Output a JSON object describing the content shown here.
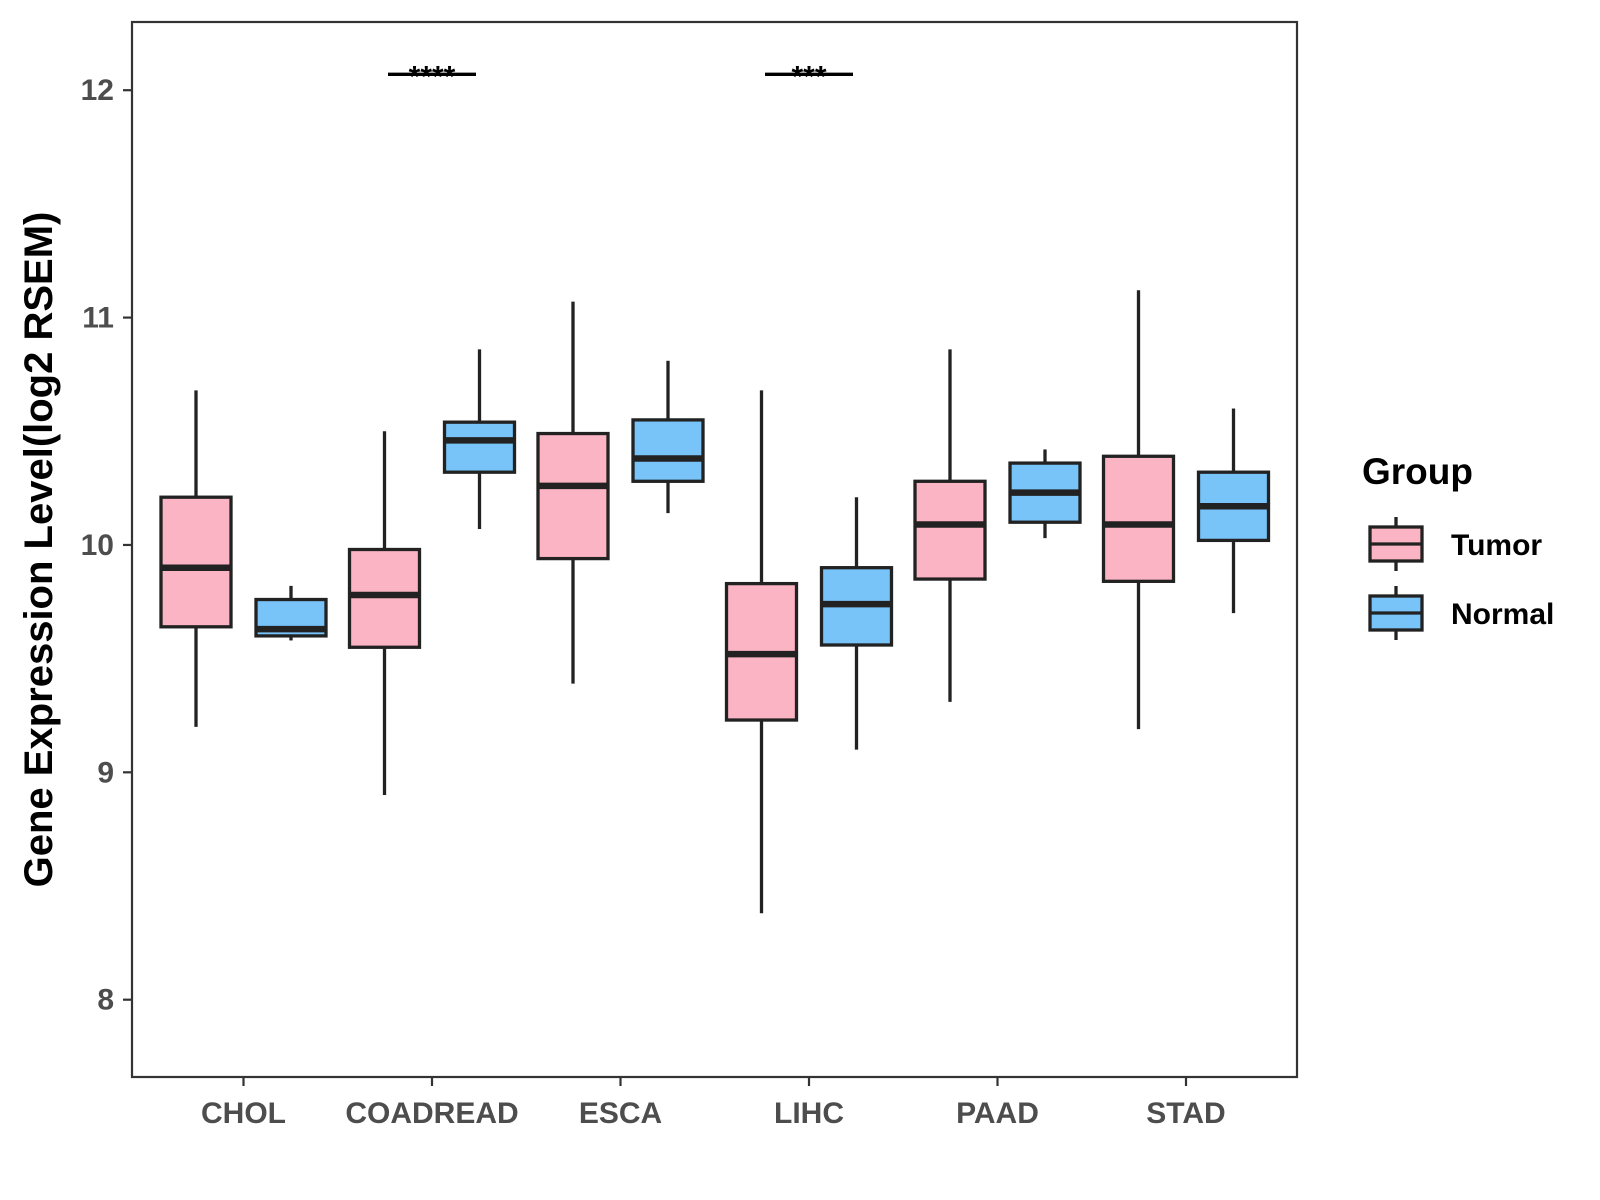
{
  "chart_data": {
    "type": "boxplot",
    "title": "",
    "xlabel": "",
    "ylabel": "Gene Expression Level(log2 RSEM)",
    "categories": [
      "CHOL",
      "COADREAD",
      "ESCA",
      "LIHC",
      "PAAD",
      "STAD"
    ],
    "ylim": [
      7.66,
      12.3
    ],
    "yticks": [
      8,
      9,
      10,
      11,
      12
    ],
    "ytick_labels": [
      "8",
      "9",
      "10",
      "11",
      "12"
    ],
    "grid": false,
    "legend": {
      "title": "Group",
      "position": "right",
      "entries": [
        {
          "name": "Tumor",
          "color": "#FBB4C4"
        },
        {
          "name": "Normal",
          "color": "#78C3F8"
        }
      ]
    },
    "series": [
      {
        "name": "Tumor",
        "color": "#FBB4C4",
        "boxes": [
          {
            "category": "CHOL",
            "whisker_low": 9.2,
            "q1": 9.64,
            "median": 9.9,
            "q3": 10.21,
            "whisker_high": 10.68
          },
          {
            "category": "COADREAD",
            "whisker_low": 8.9,
            "q1": 9.55,
            "median": 9.78,
            "q3": 9.98,
            "whisker_high": 10.5
          },
          {
            "category": "ESCA",
            "whisker_low": 9.39,
            "q1": 9.94,
            "median": 10.26,
            "q3": 10.49,
            "whisker_high": 11.07
          },
          {
            "category": "LIHC",
            "whisker_low": 8.38,
            "q1": 9.23,
            "median": 9.52,
            "q3": 9.83,
            "whisker_high": 10.68
          },
          {
            "category": "PAAD",
            "whisker_low": 9.31,
            "q1": 9.85,
            "median": 10.09,
            "q3": 10.28,
            "whisker_high": 10.86
          },
          {
            "category": "STAD",
            "whisker_low": 9.19,
            "q1": 9.84,
            "median": 10.09,
            "q3": 10.39,
            "whisker_high": 11.12
          }
        ]
      },
      {
        "name": "Normal",
        "color": "#78C3F8",
        "boxes": [
          {
            "category": "CHOL",
            "whisker_low": 9.58,
            "q1": 9.6,
            "median": 9.63,
            "q3": 9.76,
            "whisker_high": 9.82
          },
          {
            "category": "COADREAD",
            "whisker_low": 10.07,
            "q1": 10.32,
            "median": 10.46,
            "q3": 10.54,
            "whisker_high": 10.86
          },
          {
            "category": "ESCA",
            "whisker_low": 10.14,
            "q1": 10.28,
            "median": 10.38,
            "q3": 10.55,
            "whisker_high": 10.81
          },
          {
            "category": "LIHC",
            "whisker_low": 9.1,
            "q1": 9.56,
            "median": 9.74,
            "q3": 9.9,
            "whisker_high": 10.21
          },
          {
            "category": "PAAD",
            "whisker_low": 10.03,
            "q1": 10.1,
            "median": 10.23,
            "q3": 10.36,
            "whisker_high": 10.42
          },
          {
            "category": "STAD",
            "whisker_low": 9.7,
            "q1": 10.02,
            "median": 10.17,
            "q3": 10.32,
            "whisker_high": 10.6
          }
        ]
      }
    ],
    "annotations": [
      {
        "category": "COADREAD",
        "label": "****",
        "y": 12.07
      },
      {
        "category": "LIHC",
        "label": "***",
        "y": 12.07
      }
    ]
  }
}
